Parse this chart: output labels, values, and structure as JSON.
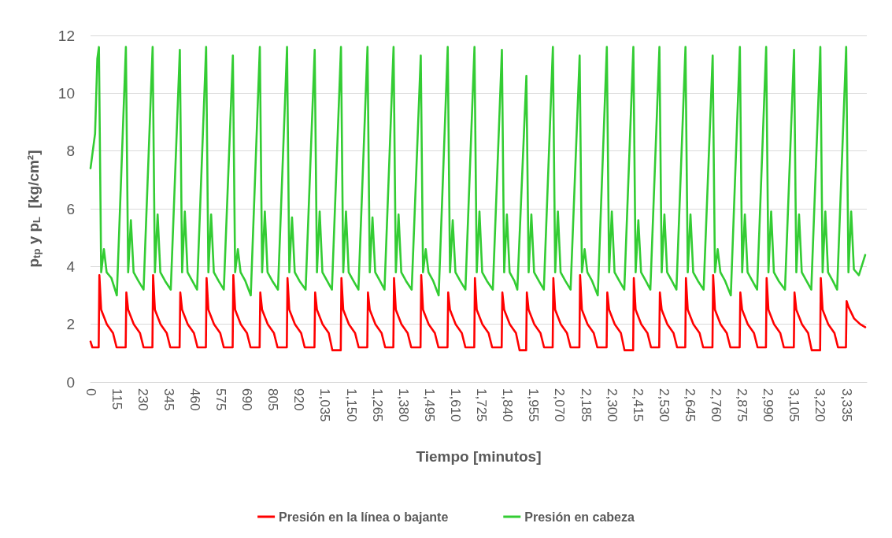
{
  "chart_data": {
    "type": "line",
    "xlabel": "Tiempo [minutos]",
    "ylabel": "p$_{tp}$ y p$_{L}$  [kg/cm²]",
    "xlim": [
      0,
      3425
    ],
    "ylim": [
      0,
      12
    ],
    "xticks": [
      0,
      115,
      230,
      345,
      460,
      575,
      690,
      805,
      920,
      {
        "value": 1035,
        "label": "1,035"
      },
      {
        "value": 1150,
        "label": "1,150"
      },
      {
        "value": 1265,
        "label": "1,265"
      },
      {
        "value": 1380,
        "label": "1,380"
      },
      {
        "value": 1495,
        "label": "1,495"
      },
      {
        "value": 1610,
        "label": "1,610"
      },
      {
        "value": 1725,
        "label": "1,725"
      },
      {
        "value": 1840,
        "label": "1,840"
      },
      {
        "value": 1955,
        "label": "1,955"
      },
      {
        "value": 2070,
        "label": "2,070"
      },
      {
        "value": 2185,
        "label": "2,185"
      },
      {
        "value": 2300,
        "label": "2,300"
      },
      {
        "value": 2415,
        "label": "2,415"
      },
      {
        "value": 2530,
        "label": "2,530"
      },
      {
        "value": 2645,
        "label": "2,645"
      },
      {
        "value": 2760,
        "label": "2,760"
      },
      {
        "value": 2875,
        "label": "2,875"
      },
      {
        "value": 2990,
        "label": "2,990"
      },
      {
        "value": 3105,
        "label": "3,105"
      },
      {
        "value": 3220,
        "label": "3,220"
      },
      {
        "value": 3335,
        "label": "3,335"
      }
    ],
    "yticks": [
      0,
      2,
      4,
      6,
      8,
      10,
      12
    ],
    "grid": "y",
    "legend": "bottom",
    "marker": "none",
    "line_style": "solid",
    "series": [
      {
        "name": "Presión en la línea o bajante",
        "color": "#ff0000",
        "x": [
          0,
          8,
          36,
          39,
          47,
          72,
          99,
          115,
          155,
          158,
          166,
          191,
          218,
          234,
          273,
          276,
          284,
          309,
          336,
          352,
          393,
          396,
          404,
          429,
          456,
          472,
          509,
          512,
          520,
          545,
          572,
          588,
          627,
          630,
          638,
          663,
          690,
          706,
          746,
          749,
          757,
          782,
          809,
          825,
          866,
          869,
          877,
          902,
          929,
          945,
          988,
          991,
          999,
          1024,
          1051,
          1067,
          1104,
          1107,
          1115,
          1140,
          1167,
          1183,
          1221,
          1224,
          1232,
          1257,
          1284,
          1300,
          1336,
          1339,
          1347,
          1372,
          1399,
          1415,
          1456,
          1459,
          1467,
          1492,
          1519,
          1535,
          1575,
          1578,
          1586,
          1611,
          1638,
          1654,
          1693,
          1696,
          1704,
          1729,
          1756,
          1772,
          1814,
          1817,
          1825,
          1850,
          1877,
          1893,
          1922,
          1925,
          1933,
          1958,
          1985,
          2001,
          2039,
          2042,
          2050,
          2075,
          2102,
          2118,
          2157,
          2160,
          2168,
          2193,
          2220,
          2236,
          2277,
          2280,
          2288,
          2313,
          2340,
          2356,
          2394,
          2397,
          2405,
          2430,
          2457,
          2473,
          2509,
          2512,
          2520,
          2545,
          2572,
          2588,
          2624,
          2627,
          2635,
          2660,
          2687,
          2703,
          2744,
          2747,
          2755,
          2780,
          2807,
          2823,
          2864,
          2867,
          2875,
          2900,
          2927,
          2943,
          2980,
          2983,
          2991,
          3016,
          3043,
          3059,
          3103,
          3106,
          3114,
          3139,
          3166,
          3182,
          3219,
          3222,
          3230,
          3255,
          3282,
          3298,
          3333,
          3336,
          3344,
          3369,
          3396,
          3418
        ],
        "values": [
          1.4,
          1.2,
          1.2,
          3.7,
          2.5,
          2.0,
          1.7,
          1.2,
          1.2,
          3.1,
          2.5,
          2.0,
          1.7,
          1.2,
          1.2,
          3.7,
          2.5,
          2.0,
          1.7,
          1.2,
          1.2,
          3.1,
          2.5,
          2.0,
          1.7,
          1.2,
          1.2,
          3.6,
          2.5,
          2.0,
          1.7,
          1.2,
          1.2,
          3.7,
          2.5,
          2.0,
          1.7,
          1.2,
          1.2,
          3.1,
          2.5,
          2.0,
          1.7,
          1.2,
          1.2,
          3.6,
          2.5,
          2.0,
          1.7,
          1.2,
          1.2,
          3.1,
          2.5,
          2.0,
          1.7,
          1.1,
          1.1,
          3.6,
          2.5,
          2.0,
          1.7,
          1.2,
          1.2,
          3.1,
          2.5,
          2.0,
          1.7,
          1.2,
          1.2,
          3.6,
          2.5,
          2.0,
          1.7,
          1.2,
          1.2,
          3.7,
          2.5,
          2.0,
          1.7,
          1.2,
          1.2,
          3.1,
          2.5,
          2.0,
          1.7,
          1.2,
          1.2,
          3.6,
          2.5,
          2.0,
          1.7,
          1.2,
          1.2,
          3.1,
          2.5,
          2.0,
          1.7,
          1.1,
          1.1,
          3.1,
          2.5,
          2.0,
          1.7,
          1.2,
          1.2,
          3.6,
          2.5,
          2.0,
          1.7,
          1.2,
          1.2,
          3.7,
          2.5,
          2.0,
          1.7,
          1.2,
          1.2,
          3.1,
          2.5,
          2.0,
          1.7,
          1.1,
          1.1,
          3.6,
          2.5,
          2.0,
          1.7,
          1.2,
          1.2,
          3.1,
          2.5,
          2.0,
          1.7,
          1.2,
          1.2,
          3.6,
          2.5,
          2.0,
          1.7,
          1.2,
          1.2,
          3.7,
          2.5,
          2.0,
          1.7,
          1.2,
          1.2,
          3.1,
          2.5,
          2.0,
          1.7,
          1.2,
          1.2,
          3.6,
          2.5,
          2.0,
          1.7,
          1.2,
          1.2,
          3.1,
          2.5,
          2.0,
          1.7,
          1.1,
          1.1,
          3.6,
          2.5,
          2.0,
          1.7,
          1.2,
          1.2,
          2.8,
          2.6,
          2.2,
          2.0,
          1.9
        ]
      },
      {
        "name": "Presión en cabeza",
        "color": "#33cc33",
        "x": [
          0,
          20,
          30,
          37,
          47,
          59,
          71,
          92,
          116,
          156,
          166,
          178,
          190,
          211,
          234,
          274,
          284,
          296,
          308,
          329,
          354,
          394,
          404,
          416,
          428,
          449,
          470,
          510,
          520,
          532,
          544,
          565,
          588,
          628,
          638,
          650,
          662,
          683,
          707,
          747,
          757,
          769,
          781,
          802,
          827,
          867,
          877,
          889,
          901,
          922,
          949,
          989,
          999,
          1011,
          1023,
          1044,
          1065,
          1105,
          1115,
          1127,
          1139,
          1160,
          1182,
          1222,
          1232,
          1244,
          1256,
          1277,
          1297,
          1337,
          1347,
          1359,
          1371,
          1392,
          1417,
          1457,
          1467,
          1479,
          1491,
          1512,
          1536,
          1576,
          1586,
          1598,
          1610,
          1631,
          1654,
          1694,
          1704,
          1716,
          1728,
          1749,
          1775,
          1815,
          1825,
          1837,
          1849,
          1870,
          1883,
          1923,
          1933,
          1945,
          1957,
          1978,
          2000,
          2040,
          2050,
          2062,
          2074,
          2095,
          2118,
          2158,
          2168,
          2180,
          2192,
          2213,
          2238,
          2278,
          2288,
          2300,
          2312,
          2333,
          2355,
          2395,
          2405,
          2417,
          2429,
          2450,
          2470,
          2510,
          2520,
          2532,
          2544,
          2565,
          2585,
          2625,
          2635,
          2647,
          2659,
          2680,
          2705,
          2745,
          2755,
          2767,
          2779,
          2800,
          2825,
          2865,
          2875,
          2887,
          2899,
          2920,
          2941,
          2981,
          2991,
          3003,
          3015,
          3036,
          3064,
          3104,
          3114,
          3126,
          3138,
          3159,
          3180,
          3220,
          3230,
          3242,
          3254,
          3275,
          3294,
          3334,
          3344,
          3356,
          3368,
          3390,
          3418
        ],
        "values": [
          7.4,
          8.6,
          11.2,
          11.6,
          3.8,
          4.6,
          3.8,
          3.6,
          3.0,
          11.6,
          3.8,
          5.6,
          3.8,
          3.5,
          3.2,
          11.6,
          3.8,
          5.8,
          3.8,
          3.5,
          3.2,
          11.5,
          3.8,
          5.9,
          3.8,
          3.5,
          3.2,
          11.6,
          3.8,
          5.8,
          3.8,
          3.5,
          3.2,
          11.3,
          3.8,
          4.6,
          3.8,
          3.5,
          3.0,
          11.6,
          3.8,
          5.9,
          3.8,
          3.5,
          3.2,
          11.6,
          3.8,
          5.7,
          3.8,
          3.5,
          3.2,
          11.5,
          3.8,
          5.9,
          3.8,
          3.5,
          3.2,
          11.6,
          3.8,
          5.9,
          3.8,
          3.5,
          3.2,
          11.6,
          3.8,
          5.7,
          3.8,
          3.5,
          3.2,
          11.6,
          3.8,
          5.8,
          3.8,
          3.5,
          3.2,
          11.3,
          3.8,
          4.6,
          3.8,
          3.5,
          3.0,
          11.6,
          3.8,
          5.6,
          3.8,
          3.5,
          3.2,
          11.6,
          3.8,
          5.9,
          3.8,
          3.5,
          3.2,
          11.5,
          3.8,
          5.8,
          3.8,
          3.5,
          3.2,
          10.6,
          3.8,
          5.8,
          3.8,
          3.5,
          3.2,
          11.6,
          3.8,
          5.9,
          3.8,
          3.5,
          3.2,
          11.3,
          3.8,
          4.6,
          3.8,
          3.5,
          3.0,
          11.6,
          3.8,
          5.9,
          3.8,
          3.5,
          3.2,
          11.6,
          3.8,
          5.6,
          3.8,
          3.5,
          3.2,
          11.6,
          3.8,
          5.8,
          3.8,
          3.5,
          3.2,
          11.6,
          3.8,
          5.8,
          3.8,
          3.5,
          3.2,
          11.3,
          3.8,
          4.6,
          3.8,
          3.5,
          3.0,
          11.6,
          3.8,
          5.8,
          3.8,
          3.5,
          3.2,
          11.6,
          3.8,
          5.9,
          3.8,
          3.5,
          3.2,
          11.5,
          3.8,
          5.8,
          3.8,
          3.5,
          3.2,
          11.6,
          3.8,
          5.9,
          3.8,
          3.5,
          3.2,
          11.6,
          3.8,
          5.9,
          3.9,
          3.7,
          4.4
        ]
      }
    ]
  }
}
